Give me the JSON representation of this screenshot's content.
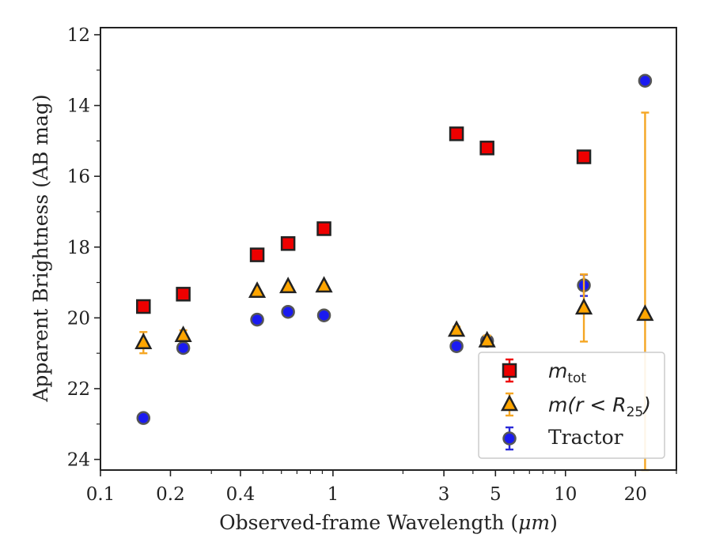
{
  "chart_data": {
    "type": "scatter",
    "xlabel_prefix": "Observed-frame Wavelength (",
    "xlabel_unit": "μm",
    "xlabel_suffix": ")",
    "ylabel": "Apparent Brightness (AB mag)",
    "x_scale": "log",
    "xlim": [
      0.1,
      30
    ],
    "ylim": [
      24.3,
      11.8
    ],
    "y_inverted": true,
    "x_ticks": [
      {
        "value": 0.1,
        "label": "0.1"
      },
      {
        "value": 0.2,
        "label": "0.2"
      },
      {
        "value": 0.4,
        "label": "0.4"
      },
      {
        "value": 1,
        "label": "1"
      },
      {
        "value": 3,
        "label": "3"
      },
      {
        "value": 5,
        "label": "5"
      },
      {
        "value": 10,
        "label": "10"
      },
      {
        "value": 20,
        "label": "20"
      }
    ],
    "x_minor_ticks": [
      0.3,
      0.5,
      0.6,
      0.7,
      0.8,
      0.9,
      2,
      4,
      6,
      7,
      8,
      9,
      30
    ],
    "y_ticks": [
      {
        "value": 12,
        "label": "12"
      },
      {
        "value": 14,
        "label": "14"
      },
      {
        "value": 16,
        "label": "16"
      },
      {
        "value": 18,
        "label": "18"
      },
      {
        "value": 20,
        "label": "20"
      },
      {
        "value": 22,
        "label": "22"
      },
      {
        "value": 24,
        "label": "24"
      }
    ],
    "y_minor_ticks": [
      13,
      15,
      17,
      19,
      21,
      23
    ],
    "legend_position": "lower-right",
    "series": [
      {
        "key": "tractor",
        "name": "Tractor",
        "marker": "circle",
        "color": "#1a1af0",
        "edge_color": "#555555",
        "error_color": "#2a2ad8",
        "points": [
          {
            "x": 0.153,
            "y": 22.83,
            "err": 0.05
          },
          {
            "x": 0.227,
            "y": 20.85,
            "err": 0.05
          },
          {
            "x": 0.472,
            "y": 20.05,
            "err": 0.03
          },
          {
            "x": 0.641,
            "y": 19.83,
            "err": 0.03
          },
          {
            "x": 0.915,
            "y": 19.93,
            "err": 0.03
          },
          {
            "x": 3.4,
            "y": 20.8,
            "err": 0.05
          },
          {
            "x": 4.6,
            "y": 20.65,
            "err": 0.1
          },
          {
            "x": 12.0,
            "y": 19.08,
            "err": 0.3
          },
          {
            "x": 22.0,
            "y": 13.3,
            "err": 0.05
          }
        ]
      },
      {
        "key": "mtot",
        "name_main": "m",
        "name_sub": "tot",
        "marker": "square",
        "color": "#ee0000",
        "edge_color": "#222222",
        "error_color": "#ee0000",
        "points": [
          {
            "x": 0.153,
            "y": 19.68,
            "err": 0.05
          },
          {
            "x": 0.227,
            "y": 19.33,
            "err": 0.05
          },
          {
            "x": 0.472,
            "y": 18.22,
            "err": 0.03
          },
          {
            "x": 0.641,
            "y": 17.9,
            "err": 0.03
          },
          {
            "x": 0.915,
            "y": 17.48,
            "err": 0.03
          },
          {
            "x": 3.4,
            "y": 14.8,
            "err": 0.05
          },
          {
            "x": 4.6,
            "y": 15.2,
            "err": 0.05
          },
          {
            "x": 12.0,
            "y": 15.45,
            "err": 0.05
          }
        ]
      },
      {
        "key": "mr25",
        "name_main": "m(r < R",
        "name_sub": "25",
        "name_tail": ")",
        "marker": "triangle",
        "color": "#ffa500",
        "edge_color": "#222222",
        "error_color": "#f5a623",
        "points": [
          {
            "x": 0.153,
            "y": 20.7,
            "err": 0.3
          },
          {
            "x": 0.227,
            "y": 20.5,
            "err": 0.15
          },
          {
            "x": 0.472,
            "y": 19.25,
            "err": 0.05
          },
          {
            "x": 0.641,
            "y": 19.12,
            "err": 0.05
          },
          {
            "x": 0.915,
            "y": 19.1,
            "err": 0.05
          },
          {
            "x": 3.4,
            "y": 20.35,
            "err": 0.1
          },
          {
            "x": 4.6,
            "y": 20.65,
            "err": 0.15
          },
          {
            "x": 12.0,
            "y": 19.72,
            "err": 0.95
          },
          {
            "x": 22.0,
            "y": 19.9,
            "err_low": 5.7,
            "err_high": 10
          }
        ]
      }
    ]
  }
}
